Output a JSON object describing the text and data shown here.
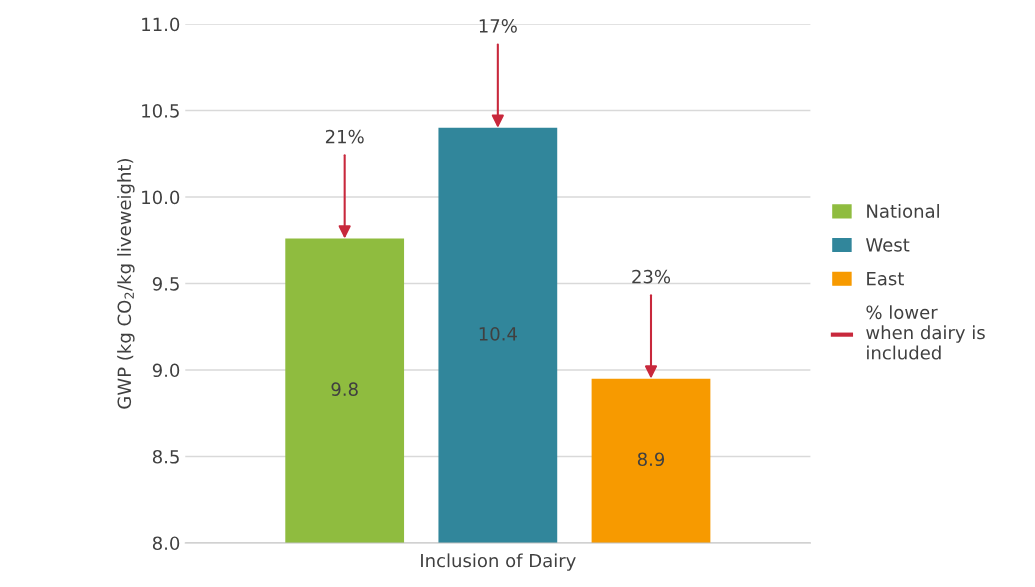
{
  "chart_data": {
    "type": "bar",
    "xlabel": "Inclusion of Dairy",
    "ylabel": "GWP (kg CO$_{2}$/kg liveweight)",
    "categories": [
      null
    ],
    "series": [
      {
        "name": "National",
        "color": "#8fbc3f",
        "values": [
          9.76
        ],
        "value_labels": [
          "9.8"
        ]
      },
      {
        "name": "West",
        "color": "#31869b",
        "values": [
          10.4
        ],
        "value_labels": [
          "10.4"
        ]
      },
      {
        "name": "East",
        "color": "#f79a00",
        "values": [
          8.95
        ],
        "value_labels": [
          "8.9"
        ]
      },
      {
        "name": "% lower when dairy is included",
        "type": "line",
        "color": "#c8283c",
        "values": [
          null
        ]
      }
    ],
    "annotations": [
      "21%",
      "17%",
      "23%"
    ],
    "ylim": [
      8.0,
      11.0
    ],
    "yticks": [
      {
        "value": 8.0,
        "label": "8.0"
      },
      {
        "value": 8.5,
        "label": "8.5"
      },
      {
        "value": 9.0,
        "label": "9.0"
      },
      {
        "value": 9.5,
        "label": "9.5"
      },
      {
        "value": 10.0,
        "label": "10.0"
      },
      {
        "value": 10.5,
        "label": "10.5"
      },
      {
        "value": 11.0,
        "label": "11.0"
      }
    ],
    "grid": "y",
    "legend": "right"
  }
}
